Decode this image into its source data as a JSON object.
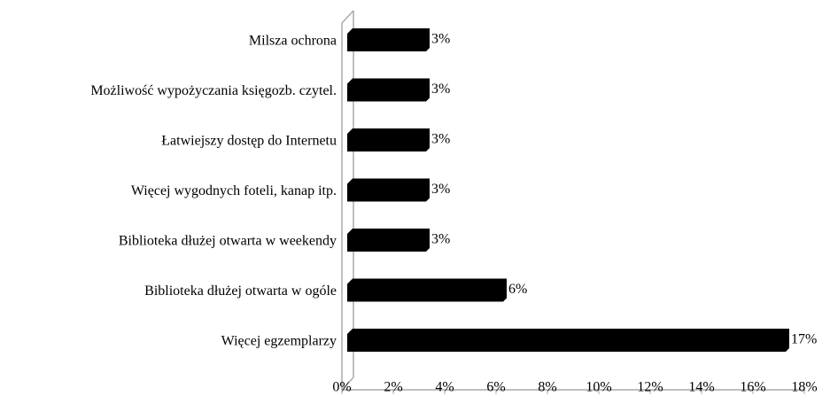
{
  "chart_data": {
    "type": "bar",
    "orientation": "horizontal",
    "categories": [
      "Milsza ochrona",
      "Możliwość wypożyczania księgozb. czytel.",
      "Łatwiejszy dostęp do Internetu",
      "Więcej wygodnych foteli, kanap itp.",
      "Biblioteka dłużej otwarta w weekendy",
      "Biblioteka dłużej otwarta w ogóle",
      "Więcej egzemplarzy"
    ],
    "values": [
      3,
      3,
      3,
      3,
      3,
      6,
      17
    ],
    "value_labels": [
      "3%",
      "3%",
      "3%",
      "3%",
      "3%",
      "6%",
      "17%"
    ],
    "color": "#000000",
    "xlim": [
      0,
      18
    ],
    "xticks": [
      {
        "value": 0,
        "label": "0%"
      },
      {
        "value": 2,
        "label": "2%"
      },
      {
        "value": 4,
        "label": "4%"
      },
      {
        "value": 6,
        "label": "6%"
      },
      {
        "value": 8,
        "label": "8%"
      },
      {
        "value": 10,
        "label": "10%"
      },
      {
        "value": 12,
        "label": "12%"
      },
      {
        "value": 14,
        "label": "14%"
      },
      {
        "value": 16,
        "label": "16%"
      },
      {
        "value": 18,
        "label": "18%"
      }
    ],
    "grid": false
  }
}
